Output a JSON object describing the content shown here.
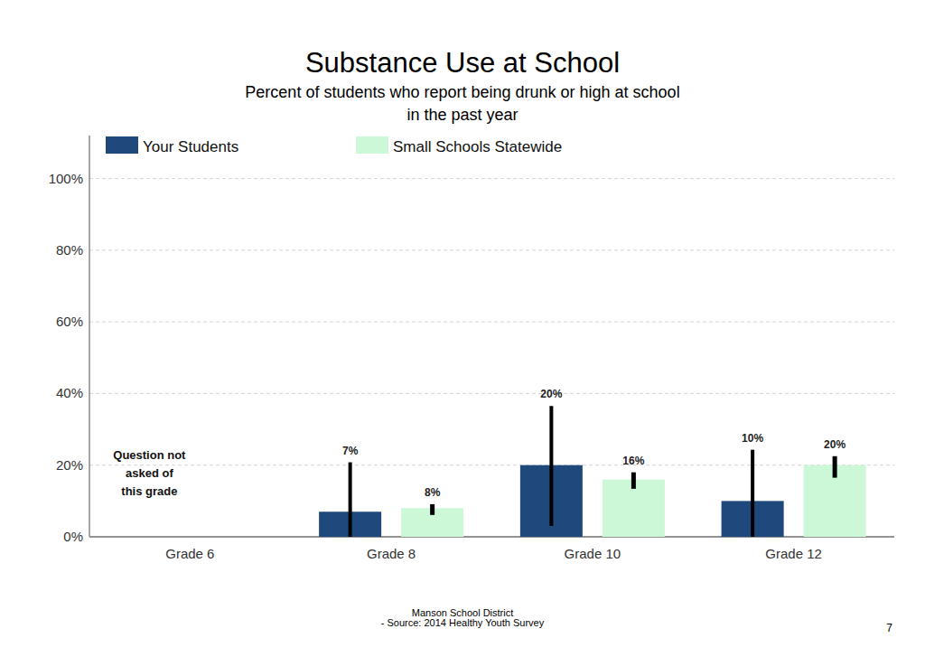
{
  "chart_data": {
    "type": "bar",
    "title": "Substance Use at School",
    "subtitle": [
      "Percent of students who report being drunk or high at school",
      "in the past year"
    ],
    "categories": [
      "Grade 6",
      "Grade 8",
      "Grade 10",
      "Grade 12"
    ],
    "series": [
      {
        "name": "Your Students",
        "color": "#1f497d",
        "values": [
          null,
          7,
          20,
          10
        ],
        "value_labels": [
          null,
          "7%",
          "20%",
          "10%"
        ],
        "ci_low": [
          null,
          0,
          3,
          0
        ],
        "ci_high": [
          null,
          20.8,
          36.5,
          24.3
        ]
      },
      {
        "name": "Small Schools Statewide",
        "color": "#ccf8d8",
        "values": [
          null,
          8,
          16,
          20
        ],
        "value_labels": [
          null,
          "8%",
          "16%",
          "20%"
        ],
        "ci_low": [
          null,
          6.1,
          13.4,
          16.5
        ],
        "ci_high": [
          null,
          9.1,
          18,
          22.5
        ]
      }
    ],
    "ylim": [
      0,
      112
    ],
    "yticks": [
      {
        "value": 0,
        "label": "0%"
      },
      {
        "value": 20,
        "label": "20%"
      },
      {
        "value": 40,
        "label": "40%"
      },
      {
        "value": 60,
        "label": "60%"
      },
      {
        "value": 80,
        "label": "80%"
      },
      {
        "value": 100,
        "label": "100%"
      }
    ],
    "grid": true,
    "legend": "top",
    "data_labels": true,
    "annotation": [
      "Question not",
      "asked of",
      "this grade"
    ],
    "footer": [
      "Manson School District",
      "- Source: 2014 Healthy Youth Survey"
    ],
    "page": "7"
  }
}
